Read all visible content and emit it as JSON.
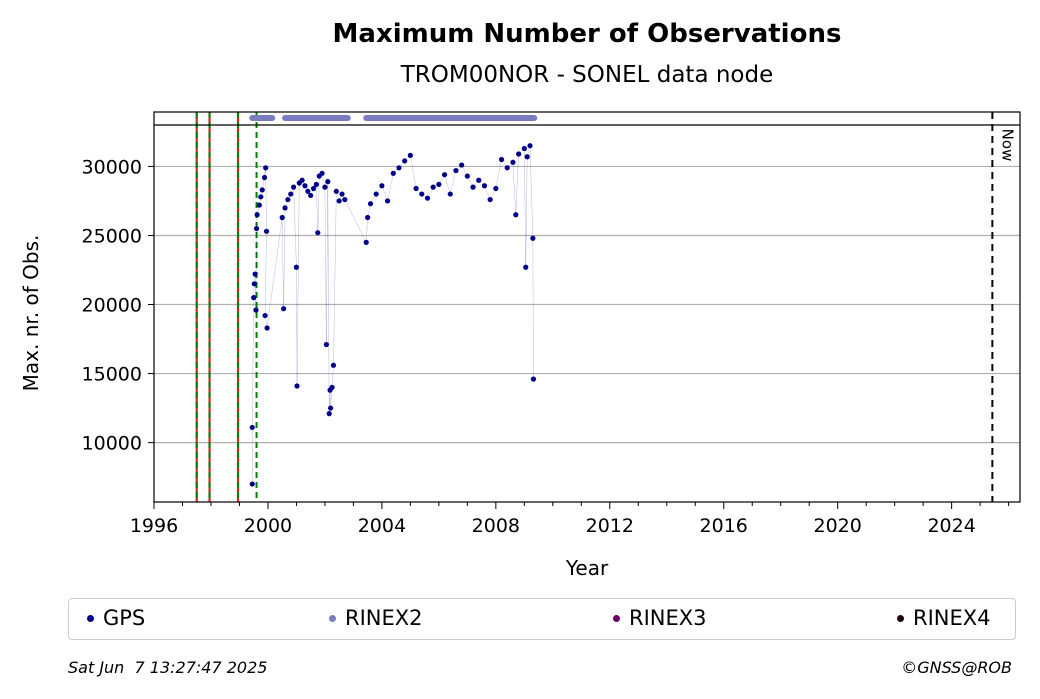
{
  "chart_data": {
    "type": "scatter",
    "title": "Maximum Number of Observations",
    "subtitle": "TROM00NOR - SONEL data node",
    "xlabel": "Year",
    "ylabel": "Max. nr. of Obs.",
    "xlim": [
      1996,
      2026.4
    ],
    "ylim": [
      5700,
      33000
    ],
    "x_ticks": [
      1996,
      2000,
      2004,
      2008,
      2012,
      2016,
      2020,
      2024
    ],
    "y_ticks": [
      10000,
      15000,
      20000,
      25000,
      30000
    ],
    "grid": "horizontal",
    "now_label": "Now",
    "now_x": 2025.43,
    "red_lines": [
      1997.5,
      1997.95,
      1998.95
    ],
    "green_dashed_lines": [
      1997.5,
      1997.95,
      1998.95,
      1999.6
    ],
    "rinex2_coverage": [
      [
        1999.45,
        2000.15
      ],
      [
        2000.6,
        2002.8
      ],
      [
        2003.45,
        2009.35
      ]
    ],
    "series": [
      {
        "name": "GPS",
        "color": "#00008b",
        "points": [
          [
            1999.45,
            7000
          ],
          [
            1999.45,
            11100
          ],
          [
            1999.5,
            20500
          ],
          [
            1999.52,
            21500
          ],
          [
            1999.55,
            22200
          ],
          [
            1999.58,
            19600
          ],
          [
            1999.6,
            25500
          ],
          [
            1999.62,
            26500
          ],
          [
            1999.7,
            27200
          ],
          [
            1999.75,
            27800
          ],
          [
            1999.8,
            28300
          ],
          [
            1999.88,
            29200
          ],
          [
            1999.92,
            29900
          ],
          [
            1999.95,
            25300
          ],
          [
            1999.9,
            19200
          ],
          [
            1999.97,
            18300
          ],
          [
            2000.5,
            26300
          ],
          [
            2000.55,
            19700
          ],
          [
            2000.6,
            27000
          ],
          [
            2000.7,
            27600
          ],
          [
            2000.8,
            28000
          ],
          [
            2000.9,
            28500
          ],
          [
            2001.0,
            22700
          ],
          [
            2001.02,
            14100
          ],
          [
            2001.1,
            28800
          ],
          [
            2001.2,
            29000
          ],
          [
            2001.3,
            28600
          ],
          [
            2001.4,
            28200
          ],
          [
            2001.5,
            27900
          ],
          [
            2001.6,
            28400
          ],
          [
            2001.7,
            28700
          ],
          [
            2001.75,
            25200
          ],
          [
            2001.8,
            29300
          ],
          [
            2001.9,
            29500
          ],
          [
            2002.0,
            28500
          ],
          [
            2002.05,
            17100
          ],
          [
            2002.1,
            28900
          ],
          [
            2002.15,
            12100
          ],
          [
            2002.18,
            13800
          ],
          [
            2002.2,
            12500
          ],
          [
            2002.25,
            14000
          ],
          [
            2002.3,
            15600
          ],
          [
            2002.4,
            28200
          ],
          [
            2002.5,
            27500
          ],
          [
            2002.6,
            28000
          ],
          [
            2002.7,
            27600
          ],
          [
            2003.45,
            24500
          ],
          [
            2003.5,
            26300
          ],
          [
            2003.6,
            27300
          ],
          [
            2003.8,
            28000
          ],
          [
            2004.0,
            28600
          ],
          [
            2004.2,
            27500
          ],
          [
            2004.4,
            29500
          ],
          [
            2004.6,
            29900
          ],
          [
            2004.8,
            30400
          ],
          [
            2005.0,
            30800
          ],
          [
            2005.2,
            28400
          ],
          [
            2005.4,
            28000
          ],
          [
            2005.6,
            27700
          ],
          [
            2005.8,
            28500
          ],
          [
            2006.0,
            28700
          ],
          [
            2006.2,
            29400
          ],
          [
            2006.4,
            28000
          ],
          [
            2006.6,
            29700
          ],
          [
            2006.8,
            30100
          ],
          [
            2007.0,
            29300
          ],
          [
            2007.2,
            28500
          ],
          [
            2007.4,
            29000
          ],
          [
            2007.6,
            28600
          ],
          [
            2007.8,
            27600
          ],
          [
            2008.0,
            28400
          ],
          [
            2008.2,
            30500
          ],
          [
            2008.4,
            29900
          ],
          [
            2008.6,
            30300
          ],
          [
            2008.7,
            26500
          ],
          [
            2008.8,
            30900
          ],
          [
            2009.0,
            31300
          ],
          [
            2009.05,
            22700
          ],
          [
            2009.1,
            30700
          ],
          [
            2009.2,
            31500
          ],
          [
            2009.3,
            24800
          ],
          [
            2009.32,
            14600
          ]
        ]
      },
      {
        "name": "RINEX2",
        "color": "#7b7bc0",
        "points": []
      },
      {
        "name": "RINEX3",
        "color": "#6a006a",
        "points": []
      },
      {
        "name": "RINEX4",
        "color": "#200010",
        "points": []
      }
    ]
  },
  "legend": {
    "gps": "GPS",
    "rinex2": "RINEX2",
    "rinex3": "RINEX3",
    "rinex4": "RINEX4"
  },
  "footer": {
    "timestamp": "Sat Jun  7 13:27:47 2025",
    "credit": "©GNSS@ROB"
  },
  "colors": {
    "gps": "#00008b",
    "rinex2": "#7b7bc0",
    "rinex3": "#6a006a",
    "rinex4": "#200010"
  }
}
